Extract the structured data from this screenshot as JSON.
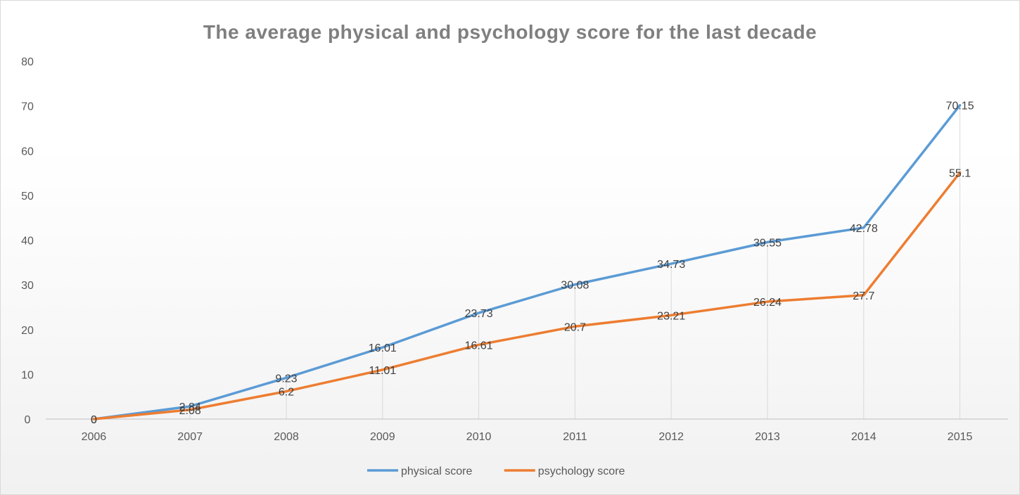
{
  "chart_data": {
    "type": "line",
    "title": "The average physical and psychology score for the last decade",
    "xlabel": "",
    "ylabel": "",
    "categories": [
      "2006",
      "2007",
      "2008",
      "2009",
      "2010",
      "2011",
      "2012",
      "2013",
      "2014",
      "2015"
    ],
    "ylim": [
      0,
      80
    ],
    "yticks": [
      0,
      10,
      20,
      30,
      40,
      50,
      60,
      70,
      80
    ],
    "grid": "vertical drop lines at each category",
    "legend_position": "bottom",
    "series": [
      {
        "name": "physical score",
        "color": "#5b9bd5",
        "values": [
          0,
          2.84,
          9.23,
          16.01,
          23.73,
          30.08,
          34.73,
          39.55,
          42.78,
          70.15
        ],
        "labels": [
          "0",
          "2.84",
          "9.23",
          "16.01",
          "23.73",
          "30.08",
          "34.73",
          "39.55",
          "42.78",
          "70.15"
        ]
      },
      {
        "name": "psychology score",
        "color": "#ed7d31",
        "values": [
          0,
          2.08,
          6.2,
          11.01,
          16.61,
          20.7,
          23.21,
          26.24,
          27.7,
          55.1
        ],
        "labels": [
          "0",
          "2.08",
          "6.2",
          "11.01",
          "16.61",
          "20.7",
          "23.21",
          "26.24",
          "27.7",
          "55.1"
        ]
      }
    ]
  }
}
